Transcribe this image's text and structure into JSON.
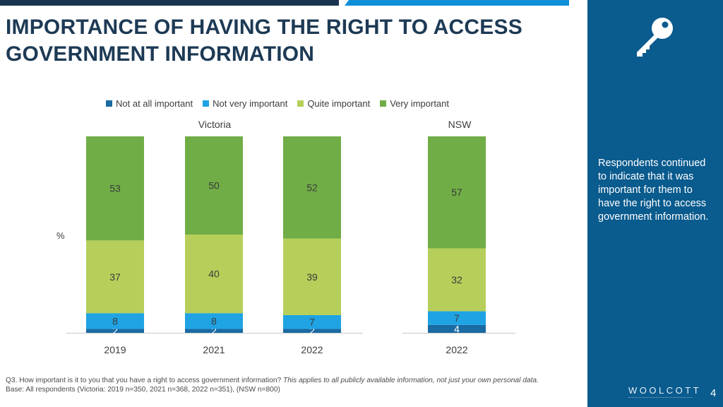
{
  "title": "IMPORTANCE OF HAVING THE RIGHT TO ACCESS GOVERNMENT INFORMATION",
  "side_panel": {
    "text": "Respondents continued to indicate that it was important for them to have the right to access government information.",
    "logo": "WOOLCOTT",
    "page_number": "4",
    "icon": "key-icon"
  },
  "footnote": {
    "question": "Q3. How important is it to you that you have a right to access government information?",
    "question_note": "This applies to all publicly available information, not just your own personal data.",
    "base": "Base: All respondents (Victoria: 2019 n=350, 2021 n=368, 2022 n=351), (NSW n=800)"
  },
  "colors": {
    "not_at_all": "#1a6aa3",
    "not_very": "#1fa3e3",
    "quite": "#b6cf5a",
    "very": "#70ad47",
    "title": "#1d3a55",
    "panel": "#0a5b8e"
  },
  "chart_data": {
    "type": "bar",
    "stacked": true,
    "ylabel": "%",
    "ylim": [
      0,
      100
    ],
    "groups": [
      {
        "name": "Victoria",
        "categories": [
          "2019",
          "2021",
          "2022"
        ]
      },
      {
        "name": "NSW",
        "categories": [
          "2022"
        ]
      }
    ],
    "categories": [
      "2019",
      "2021",
      "2022",
      "2022"
    ],
    "series": [
      {
        "name": "Not at all important",
        "color": "#1a6aa3",
        "values": [
          2,
          2,
          2,
          4
        ]
      },
      {
        "name": "Not very important",
        "color": "#1fa3e3",
        "values": [
          8,
          8,
          7,
          7
        ]
      },
      {
        "name": "Quite important",
        "color": "#b6cf5a",
        "values": [
          37,
          40,
          39,
          32
        ]
      },
      {
        "name": "Very important",
        "color": "#70ad47",
        "values": [
          53,
          50,
          52,
          57
        ]
      }
    ],
    "legend_position": "top"
  }
}
